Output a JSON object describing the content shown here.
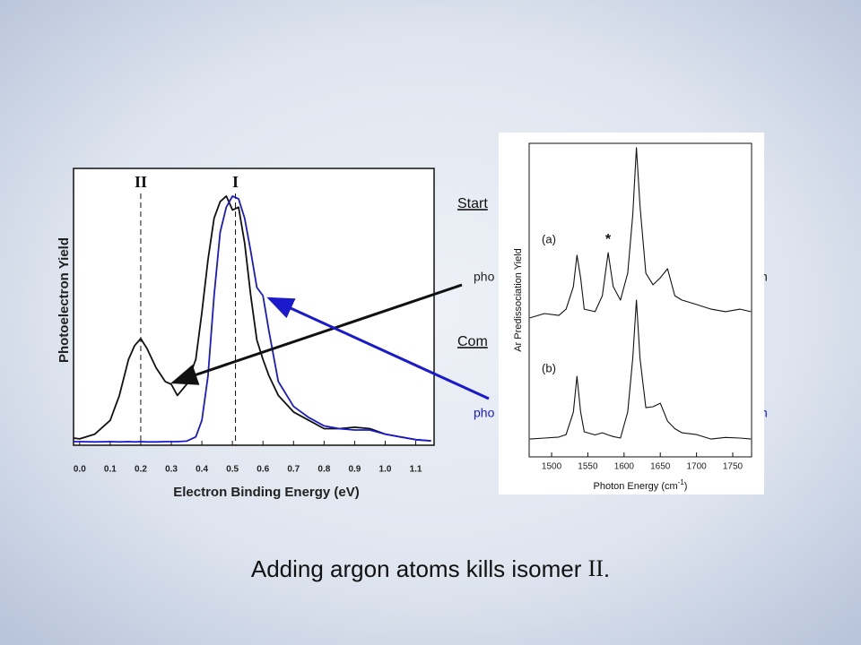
{
  "chart_data": [
    {
      "type": "line",
      "y_label": "Photoelectron Yield",
      "x_label": "Electron Binding Energy (eV)",
      "xlim": [
        -0.02,
        1.16
      ],
      "ylim": [
        0,
        1
      ],
      "xticks": [
        {
          "value": 0,
          "label": "0.0"
        },
        0.1,
        0.2,
        0.3,
        0.4,
        0.5,
        0.6,
        0.7,
        0.8,
        0.9,
        {
          "value": 1,
          "label": "1.0"
        },
        1.1
      ],
      "x": [
        -0.02,
        0,
        0.05,
        0.1,
        0.13,
        0.16,
        0.18,
        0.2,
        0.22,
        0.25,
        0.28,
        0.3,
        0.32,
        0.35,
        0.38,
        0.4,
        0.42,
        0.44,
        0.46,
        0.48,
        0.5,
        0.52,
        0.54,
        0.56,
        0.58,
        0.6,
        0.62,
        0.65,
        0.7,
        0.75,
        0.8,
        0.85,
        0.9,
        0.95,
        1.0,
        1.05,
        1.1,
        1.15
      ],
      "series": [
        {
          "color": "#111111",
          "values": [
            0.026,
            0.023,
            0.04,
            0.09,
            0.18,
            0.31,
            0.36,
            0.385,
            0.35,
            0.28,
            0.23,
            0.22,
            0.18,
            0.22,
            0.31,
            0.48,
            0.67,
            0.82,
            0.88,
            0.9,
            0.85,
            0.86,
            0.73,
            0.54,
            0.38,
            0.31,
            0.25,
            0.18,
            0.12,
            0.09,
            0.06,
            0.06,
            0.065,
            0.06,
            0.04,
            0.03,
            0.02,
            0.016
          ]
        },
        {
          "color": "#1a1acc",
          "values": [
            0.013,
            0.013,
            0.012,
            0.013,
            0.012,
            0.013,
            0.012,
            0.013,
            0.012,
            0.012,
            0.013,
            0.013,
            0.013,
            0.015,
            0.03,
            0.09,
            0.25,
            0.54,
            0.77,
            0.86,
            0.9,
            0.89,
            0.82,
            0.7,
            0.57,
            0.54,
            0.41,
            0.23,
            0.14,
            0.1,
            0.07,
            0.06,
            0.055,
            0.055,
            0.04,
            0.03,
            0.02,
            0.016
          ]
        }
      ],
      "annotations": [
        {
          "label": "II",
          "x": 0.2
        },
        {
          "label": "I",
          "x": 0.51
        }
      ]
    },
    {
      "type": "line",
      "y_label": "Ar Predissociation Yield",
      "x_label": [
        "Photon Energy (cm",
        "-1",
        ")"
      ],
      "xlim": [
        1469,
        1776
      ],
      "ylim": [
        0,
        1
      ],
      "xticks": [
        1500,
        1550,
        1600,
        1650,
        1700,
        1750
      ],
      "x": [
        1470,
        1490,
        1510,
        1520,
        1530,
        1535,
        1540,
        1545,
        1560,
        1570,
        1578,
        1585,
        1595,
        1605,
        1612,
        1617,
        1622,
        1630,
        1640,
        1650,
        1660,
        1670,
        1680,
        1700,
        1720,
        1740,
        1760,
        1775
      ],
      "series": [
        {
          "name": "(a)",
          "color": "#111111",
          "values": [
            0.443,
            0.457,
            0.451,
            0.471,
            0.543,
            0.643,
            0.571,
            0.471,
            0.463,
            0.514,
            0.651,
            0.543,
            0.5,
            0.586,
            0.771,
            0.986,
            0.8,
            0.586,
            0.549,
            0.571,
            0.6,
            0.514,
            0.5,
            0.486,
            0.471,
            0.463,
            0.471,
            0.463
          ]
        },
        {
          "name": "(b)",
          "color": "#111111",
          "values": [
            0.057,
            0.06,
            0.063,
            0.071,
            0.143,
            0.257,
            0.143,
            0.08,
            0.07,
            0.077,
            0.07,
            0.065,
            0.06,
            0.143,
            0.314,
            0.5,
            0.314,
            0.157,
            0.16,
            0.171,
            0.114,
            0.09,
            0.077,
            0.071,
            0.057,
            0.062,
            0.06,
            0.057
          ]
        }
      ],
      "annotation": "*"
    }
  ],
  "slide": {
    "fragments": [
      "Start",
      "pho",
      "n",
      "Com",
      "pho",
      "n"
    ],
    "caption": [
      "Adding argon atoms kills isomer ",
      "II",
      "."
    ]
  }
}
